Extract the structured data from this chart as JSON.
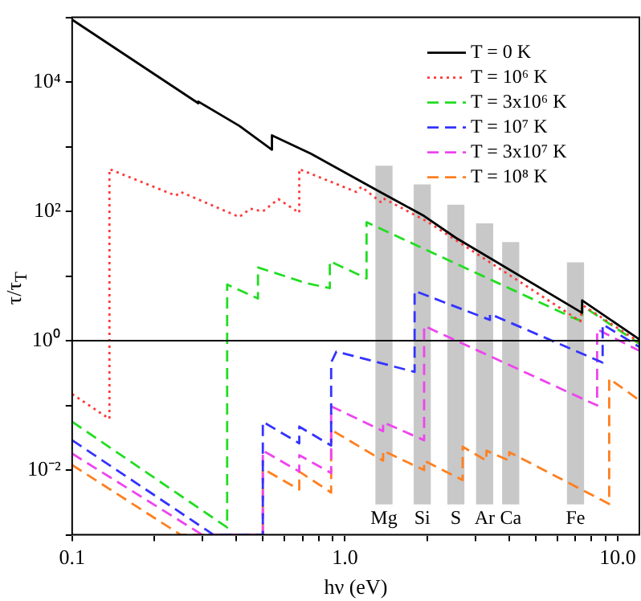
{
  "chart_data": {
    "type": "line",
    "xlabel": "hν (eV)",
    "ylabel": "τ/τ$_{T}$",
    "log": "xy",
    "grid": false,
    "legend": "top right",
    "xlim": [
      0.1,
      12
    ],
    "ylim": [
      0.001,
      100000
    ],
    "xticks": [
      {
        "value": 0.1,
        "label": "0.1"
      },
      {
        "value": 0.2,
        "label": null
      },
      {
        "value": 0.3,
        "label": null
      },
      {
        "value": 0.4,
        "label": null
      },
      {
        "value": 0.5,
        "label": null
      },
      {
        "value": 0.6,
        "label": null
      },
      {
        "value": 0.7,
        "label": null
      },
      {
        "value": 0.8,
        "label": null
      },
      {
        "value": 0.9,
        "label": null
      },
      {
        "value": 1,
        "label": "1.0"
      },
      {
        "value": 2,
        "label": null
      },
      {
        "value": 3,
        "label": null
      },
      {
        "value": 4,
        "label": null
      },
      {
        "value": 5,
        "label": null
      },
      {
        "value": 6,
        "label": null
      },
      {
        "value": 7,
        "label": null
      },
      {
        "value": 8,
        "label": null
      },
      {
        "value": 9,
        "label": null
      },
      {
        "value": 10,
        "label": "10.0"
      }
    ],
    "yticks": [
      {
        "value": 0.001,
        "label": null
      },
      {
        "value": 0.01,
        "label": "10⁻²"
      },
      {
        "value": 0.1,
        "label": null
      },
      {
        "value": 1,
        "label": "10⁰"
      },
      {
        "value": 10,
        "label": null
      },
      {
        "value": 100,
        "label": "10²"
      },
      {
        "value": 1000,
        "label": null
      },
      {
        "value": 10000,
        "label": "10⁴"
      },
      {
        "value": 100000,
        "label": null
      }
    ],
    "ref_lines": [
      {
        "axis": "y",
        "value": 1,
        "color": "#000000"
      }
    ],
    "annotations": [
      "Mg",
      "Si",
      "S",
      "Ar",
      "Ca",
      "Fe"
    ],
    "series": [
      {
        "type": "bar",
        "color": "#c8c8c8",
        "x": [
          1.39,
          1.92,
          2.55,
          3.25,
          4.05,
          7.0
        ],
        "base": [
          0.003,
          0.003,
          0.003,
          0.003,
          0.003,
          0.003
        ],
        "values": [
          500,
          257,
          125,
          64,
          33,
          16
        ]
      },
      {
        "name": "T = 0 K",
        "color": "#000000",
        "line_style": "solid",
        "x": [
          0.1,
          0.29,
          0.29,
          0.41,
          0.54,
          0.54,
          0.75,
          1.33,
          1.95,
          2.55,
          7.4,
          7.4,
          12
        ],
        "values": [
          92000,
          4700,
          5000,
          2100,
          900,
          1500,
          780,
          205,
          85,
          39,
          2.7,
          4.2,
          1.05
        ]
      },
      {
        "name": "T = 10⁶ K",
        "color": "#ff3a3a",
        "line_style": "dotted",
        "x": [
          0.1,
          0.137,
          0.137,
          0.24,
          0.25,
          0.41,
          0.45,
          0.5,
          0.57,
          0.68,
          0.68,
          1.1,
          1.15,
          1.35,
          1.38,
          2.0,
          7.3,
          7.4,
          12
        ],
        "values": [
          0.15,
          0.062,
          450,
          175,
          200,
          82,
          110,
          100,
          155,
          95,
          450,
          200,
          240,
          140,
          160,
          70,
          2.0,
          3.6,
          0.95
        ]
      },
      {
        "name": "T = 3x10⁶ K",
        "color": "#22dd22",
        "line_style": "dashed",
        "x": [
          0.1,
          0.37,
          0.37,
          0.48,
          0.48,
          0.72,
          0.88,
          0.88,
          1.2,
          1.2,
          6.8,
          7.4,
          7.4,
          12
        ],
        "values": [
          0.056,
          0.0013,
          7.4,
          4.5,
          13.6,
          7.8,
          6.5,
          17,
          9.2,
          68,
          2.3,
          2.0,
          3.5,
          0.9
        ]
      },
      {
        "name": "T = 10⁷ K",
        "color": "#3333ff",
        "line_style": "dashed",
        "x": [
          0.1,
          0.33,
          0.5,
          0.5,
          0.68,
          0.68,
          0.89,
          0.89,
          0.93,
          1.8,
          1.8,
          3.4,
          3.4,
          8.8,
          8.8,
          12
        ],
        "values": [
          0.029,
          0.001,
          0.001,
          0.056,
          0.026,
          0.047,
          0.024,
          0.46,
          0.68,
          0.33,
          5.9,
          2.1,
          2.6,
          0.46,
          1.8,
          0.8
        ]
      },
      {
        "name": "T = 3x10⁷ K",
        "color": "#ee44ee",
        "line_style": "dashed",
        "x": [
          0.1,
          0.3,
          0.5,
          0.5,
          0.68,
          0.68,
          0.89,
          0.89,
          1.38,
          1.38,
          1.95,
          1.95,
          8.4,
          8.4,
          12
        ],
        "values": [
          0.018,
          0.001,
          0.001,
          0.02,
          0.0095,
          0.017,
          0.009,
          0.097,
          0.04,
          0.055,
          0.029,
          1.7,
          0.1,
          1.5,
          0.7
        ]
      },
      {
        "name": "T = 10⁸ K",
        "color": "#ff7f1f",
        "line_style": "dashed",
        "x": [
          0.1,
          0.25,
          0.5,
          0.5,
          0.68,
          0.68,
          0.89,
          0.89,
          1.38,
          1.38,
          1.95,
          1.95,
          2.7,
          2.7,
          3.3,
          3.3,
          4.0,
          4.0,
          9.3,
          9.3,
          12
        ],
        "values": [
          0.012,
          0.001,
          0.001,
          0.0105,
          0.005,
          0.0095,
          0.0045,
          0.042,
          0.014,
          0.02,
          0.01,
          0.014,
          0.007,
          0.023,
          0.014,
          0.02,
          0.014,
          0.019,
          0.003,
          0.26,
          0.12
        ]
      }
    ]
  }
}
